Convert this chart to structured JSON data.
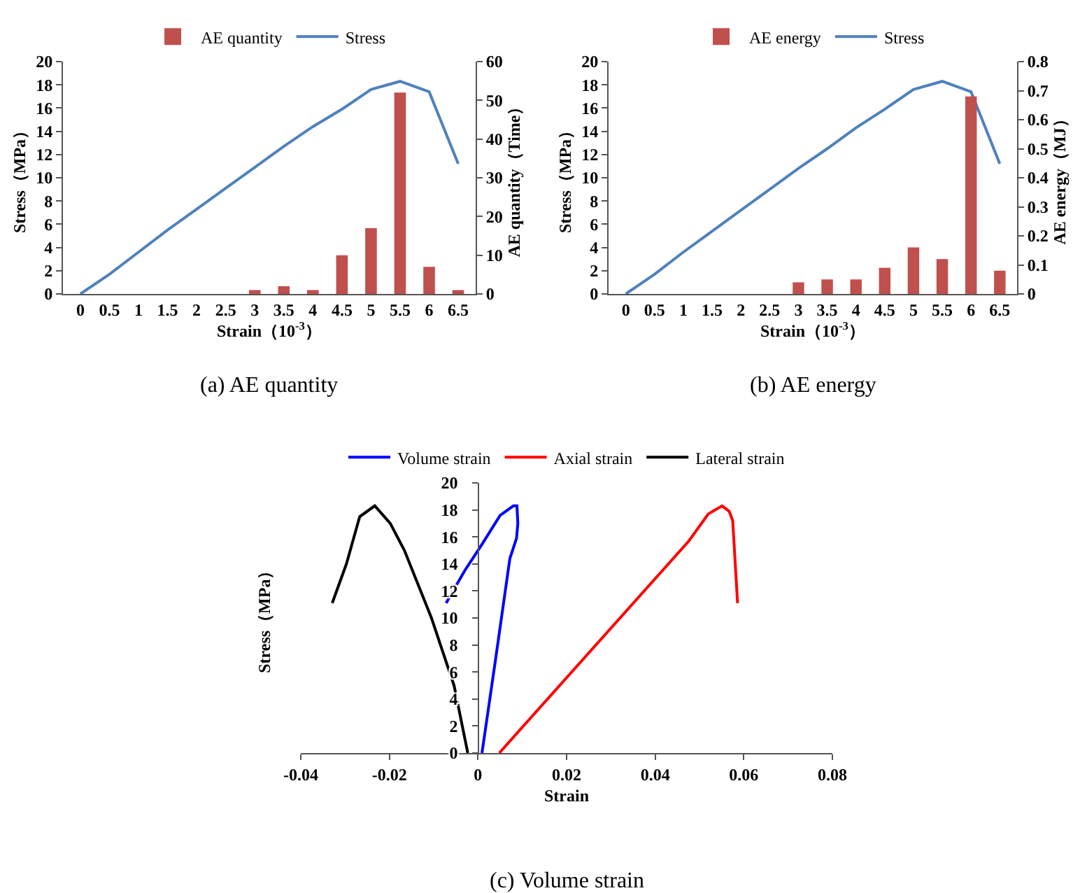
{
  "chart_data": [
    {
      "type": "bar",
      "categories": [
        "0",
        "0.5",
        "1",
        "1.5",
        "2",
        "2.5",
        "3",
        "3.5",
        "4",
        "4.5",
        "5",
        "5.5",
        "6",
        "6.5"
      ],
      "xlabel": "Strain（10$^{-3}$）",
      "ylabel": "Stress（MPa）",
      "y2label": "AE quantity（Time）",
      "ylim": [
        0,
        20
      ],
      "yticks": [
        0,
        2,
        4,
        6,
        8,
        10,
        12,
        14,
        16,
        18,
        20
      ],
      "y2lim": [
        0,
        60
      ],
      "y2ticks": [
        0,
        10,
        20,
        30,
        40,
        50,
        60
      ],
      "grid": false,
      "legend": "top",
      "annotations": [
        "(a) AE quantity"
      ],
      "series": [
        {
          "name": "AE quantity",
          "axis": "y2",
          "color": "#c0504d",
          "values": [
            0,
            0,
            0,
            0,
            0,
            0,
            1,
            2,
            1,
            10,
            17,
            52,
            7,
            1
          ]
        },
        {
          "name": "Stress",
          "type": "line",
          "color": "#4f81bd",
          "values": [
            0,
            1.7,
            3.6,
            5.5,
            7.3,
            9.1,
            10.9,
            12.7,
            14.4,
            15.9,
            17.6,
            18.3,
            17.4,
            11.2
          ]
        }
      ]
    },
    {
      "type": "bar",
      "categories": [
        "0",
        "0.5",
        "1",
        "1.5",
        "2",
        "2.5",
        "3",
        "3.5",
        "4",
        "4.5",
        "5",
        "5.5",
        "6",
        "6.5"
      ],
      "xlabel": "Strain（10$^{-3}$）",
      "ylabel": "Stress（MPa）",
      "y2label": "AE energy（MJ）",
      "ylim": [
        0,
        20
      ],
      "yticks": [
        0,
        2,
        4,
        6,
        8,
        10,
        12,
        14,
        16,
        18,
        20
      ],
      "y2lim": [
        0,
        0.8
      ],
      "y2ticks": [
        0,
        0.1,
        0.2,
        0.3,
        0.4,
        0.5,
        0.6,
        0.7,
        0.8
      ],
      "grid": false,
      "legend": "top",
      "annotations": [
        "(b) AE energy"
      ],
      "series": [
        {
          "name": "AE energy",
          "axis": "y2",
          "color": "#c0504d",
          "values": [
            0,
            0,
            0,
            0,
            0,
            0,
            0.04,
            0.05,
            0.05,
            0.09,
            0.16,
            0.12,
            0.68,
            0.08
          ]
        },
        {
          "name": "Stress",
          "type": "line",
          "color": "#4f81bd",
          "values": [
            0,
            1.7,
            3.6,
            5.4,
            7.2,
            9.0,
            10.8,
            12.5,
            14.3,
            15.9,
            17.6,
            18.3,
            17.4,
            11.2
          ]
        }
      ]
    },
    {
      "type": "line",
      "xlabel": "Strain",
      "ylabel": "Stress（MPa）",
      "xlim": [
        -0.04,
        0.08
      ],
      "xticks": [
        -0.04,
        -0.02,
        0,
        0.02,
        0.04,
        0.06,
        0.08
      ],
      "ylim": [
        0,
        20
      ],
      "yticks": [
        0,
        2,
        4,
        6,
        8,
        10,
        12,
        14,
        16,
        18,
        20
      ],
      "grid": false,
      "legend": "top",
      "marker": "none",
      "annotations": [
        "(c) Volume strain"
      ],
      "series": [
        {
          "name": "Volume strain",
          "color": "#0000ff",
          "x": [
            0.0009,
            0.004,
            0.0072,
            0.0087,
            0.009,
            0.0088,
            0.008,
            0.005,
            0.001,
            -0.003,
            -0.0072
          ],
          "values": [
            0,
            7,
            14.4,
            15.9,
            17,
            18.3,
            18.3,
            17.6,
            15.5,
            13.5,
            11.1
          ]
        },
        {
          "name": "Axial strain",
          "color": "#ff0000",
          "x": [
            0.0048,
            0.0476,
            0.052,
            0.0551,
            0.0567,
            0.0575,
            0.0586
          ],
          "values": [
            0,
            15.7,
            17.7,
            18.3,
            17.9,
            17.2,
            11.1
          ]
        },
        {
          "name": "Lateral strain",
          "color": "#000000",
          "x": [
            -0.0023,
            -0.0054,
            -0.0105,
            -0.0166,
            -0.0198,
            -0.0233,
            -0.0267,
            -0.0297,
            -0.0329
          ],
          "values": [
            0,
            5,
            10,
            15,
            17,
            18.3,
            17.5,
            14,
            11.1
          ]
        }
      ]
    }
  ]
}
